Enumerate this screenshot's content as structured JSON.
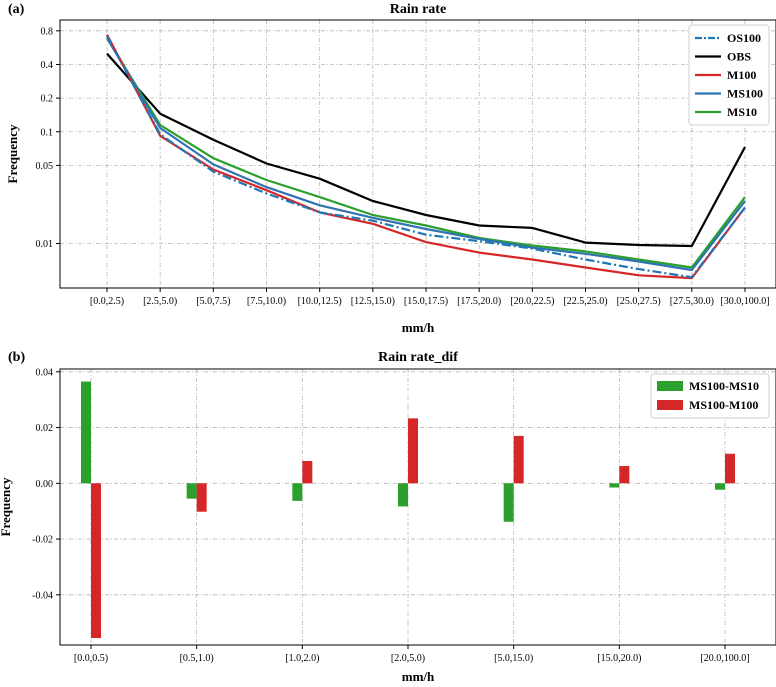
{
  "colors": {
    "OS100": "#1f77b4",
    "OBS": "#000000",
    "M100": "#d62728",
    "MS100": "#2f74b0",
    "MS10": "#2ca02c",
    "bar_green": "#2ca02c",
    "bar_red": "#d62728"
  },
  "chart_data": [
    {
      "type": "line",
      "panel_label": "(a)",
      "title": "Rain rate",
      "xlabel": "mm/h",
      "ylabel": "Frequency",
      "yscale": "log",
      "ylim": [
        0.004,
        1.0
      ],
      "grid": true,
      "legend_position": "top-right",
      "categories": [
        "[0.0,2.5)",
        "[2.5,5.0)",
        "[5.0,7.5)",
        "[7.5,10.0)",
        "[10.0,12.5)",
        "[12.5,15.0)",
        "[15.0,17.5)",
        "[17.5,20.0)",
        "[20.0,22.5)",
        "[22.5,25.0)",
        "[25.0,27.5)",
        "[27.5,30.0)",
        "[30.0,100.0]"
      ],
      "yticks": [
        0.01,
        0.05,
        0.1,
        0.2,
        0.4,
        0.8
      ],
      "ytick_labels": [
        "0.01",
        "0.05",
        "0.1",
        "0.2",
        "0.4",
        "0.8"
      ],
      "series": [
        {
          "name": "OS100",
          "style": "dashdot",
          "values": [
            0.72,
            0.095,
            0.044,
            0.028,
            0.019,
            0.016,
            0.012,
            0.0105,
            0.009,
            0.0072,
            0.0059,
            0.005,
            0.021
          ]
        },
        {
          "name": "OBS",
          "style": "solid",
          "values": [
            0.5,
            0.145,
            0.085,
            0.052,
            0.038,
            0.024,
            0.018,
            0.0145,
            0.0138,
            0.0102,
            0.0097,
            0.0095,
            0.073
          ]
        },
        {
          "name": "M100",
          "style": "solid",
          "values": [
            0.74,
            0.092,
            0.046,
            0.03,
            0.019,
            0.015,
            0.0103,
            0.0083,
            0.0072,
            0.0061,
            0.0052,
            0.0049,
            0.021
          ]
        },
        {
          "name": "MS100",
          "style": "solid",
          "values": [
            0.69,
            0.108,
            0.051,
            0.032,
            0.022,
            0.017,
            0.0135,
            0.011,
            0.0092,
            0.0081,
            0.0069,
            0.0058,
            0.024
          ]
        },
        {
          "name": "MS10",
          "style": "solid",
          "values": [
            0.69,
            0.115,
            0.058,
            0.037,
            0.026,
            0.018,
            0.0145,
            0.0112,
            0.0096,
            0.0085,
            0.0072,
            0.0061,
            0.026
          ]
        }
      ]
    },
    {
      "type": "bar",
      "panel_label": "(b)",
      "title": "Rain rate_dif",
      "xlabel": "mm/h",
      "ylabel": "Frequency",
      "ylim": [
        -0.058,
        0.041
      ],
      "grid": true,
      "legend_position": "top-right",
      "categories": [
        "[0.0,0.5)",
        "[0.5,1.0)",
        "[1.0,2.0)",
        "[2.0,5.0)",
        "[5.0,15.0)",
        "[15.0,20.0)",
        "[20.0,100.0]"
      ],
      "yticks": [
        -0.04,
        -0.02,
        0.0,
        0.02,
        0.04
      ],
      "ytick_labels": [
        "-0.04",
        "-0.02",
        "0.00",
        "0.02",
        "0.04"
      ],
      "series": [
        {
          "name": "MS100-MS10",
          "values": [
            0.0365,
            -0.0055,
            -0.0063,
            -0.0083,
            -0.0138,
            -0.0015,
            -0.0023
          ]
        },
        {
          "name": "MS100-M100",
          "values": [
            -0.0555,
            -0.0102,
            0.008,
            0.0233,
            0.017,
            0.0062,
            0.0106
          ]
        }
      ]
    }
  ]
}
